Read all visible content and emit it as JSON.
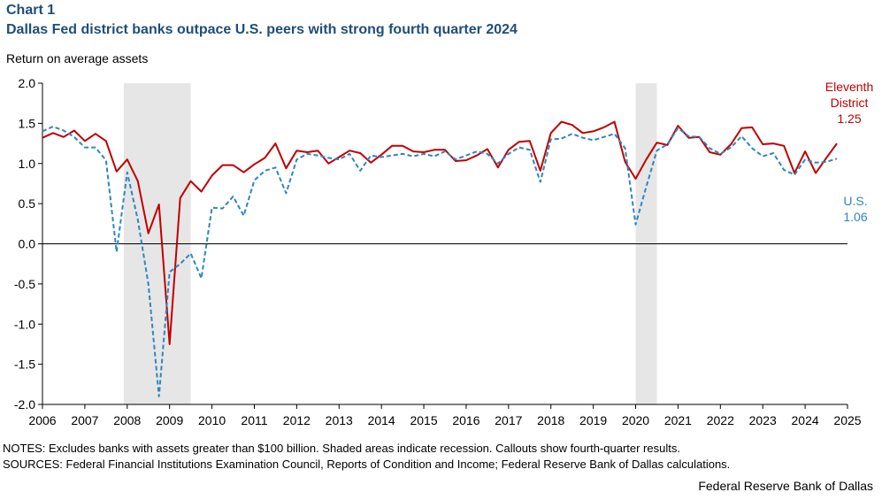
{
  "chart_number": "Chart 1",
  "chart_data": {
    "type": "line",
    "title": "Dallas Fed district banks outpace U.S. peers with strong fourth quarter 2024",
    "ylabel": "Return on average assets",
    "xlabel": "",
    "xlim": [
      2006,
      2025
    ],
    "ylim": [
      -2.0,
      2.0
    ],
    "x_ticks": [
      "2006",
      "2007",
      "2008",
      "2009",
      "2010",
      "2011",
      "2012",
      "2013",
      "2014",
      "2015",
      "2016",
      "2017",
      "2018",
      "2019",
      "2020",
      "2021",
      "2022",
      "2023",
      "2024",
      "2025"
    ],
    "y_ticks": [
      "2.0",
      "1.5",
      "1.0",
      "0.5",
      "0.0",
      "-0.5",
      "-1.0",
      "-1.5",
      "-2.0"
    ],
    "recessions": [
      [
        2007.92,
        2009.5
      ],
      [
        2020.0,
        2020.5
      ]
    ],
    "series": [
      {
        "name": "Eleventh District",
        "color": "#c00000",
        "style": "solid",
        "callout": [
          "Eleventh",
          "District",
          "1.25"
        ],
        "values": [
          1.32,
          1.38,
          1.33,
          1.41,
          1.28,
          1.37,
          1.28,
          0.9,
          1.05,
          0.78,
          0.13,
          0.49,
          -1.25,
          0.57,
          0.78,
          0.65,
          0.85,
          0.98,
          0.98,
          0.89,
          0.99,
          1.07,
          1.25,
          0.94,
          1.16,
          1.14,
          1.16,
          1.0,
          1.08,
          1.16,
          1.13,
          1.01,
          1.11,
          1.22,
          1.22,
          1.15,
          1.14,
          1.17,
          1.17,
          1.03,
          1.04,
          1.1,
          1.18,
          0.95,
          1.17,
          1.27,
          1.28,
          0.91,
          1.38,
          1.52,
          1.48,
          1.38,
          1.4,
          1.45,
          1.52,
          1.02,
          0.81,
          1.05,
          1.26,
          1.23,
          1.47,
          1.32,
          1.33,
          1.14,
          1.11,
          1.24,
          1.44,
          1.45,
          1.24,
          1.25,
          1.22,
          0.88,
          1.15,
          0.88,
          1.07,
          1.25
        ]
      },
      {
        "name": "U.S.",
        "color": "#2e86c1",
        "style": "dashed",
        "callout": [
          "U.S.",
          "1.06"
        ],
        "values": [
          1.4,
          1.46,
          1.41,
          1.33,
          1.2,
          1.2,
          1.04,
          -0.1,
          0.89,
          0.3,
          -0.5,
          -1.9,
          -0.35,
          -0.25,
          -0.12,
          -0.43,
          0.45,
          0.44,
          0.59,
          0.35,
          0.79,
          0.91,
          0.95,
          0.63,
          1.05,
          1.12,
          1.1,
          1.07,
          1.05,
          1.12,
          0.91,
          1.1,
          1.08,
          1.1,
          1.12,
          1.09,
          1.12,
          1.09,
          1.15,
          1.05,
          1.1,
          1.15,
          1.12,
          1.0,
          1.12,
          1.2,
          1.17,
          0.77,
          1.3,
          1.31,
          1.37,
          1.32,
          1.29,
          1.33,
          1.37,
          1.19,
          0.24,
          0.71,
          1.16,
          1.24,
          1.44,
          1.34,
          1.33,
          1.19,
          1.12,
          1.2,
          1.34,
          1.19,
          1.09,
          1.13,
          0.92,
          0.86,
          1.05,
          1.01,
          1.02,
          1.06
        ]
      }
    ]
  },
  "notes": "NOTES: Excludes banks with assets greater than $100 billion.  Shaded areas indicate recession. Callouts show fourth-quarter results.",
  "sources": "SOURCES: Federal Financial Institutions Examination Council, Reports of Condition and Income; Federal Reserve Bank of Dallas calculations.",
  "credit": "Federal Reserve Bank of Dallas"
}
